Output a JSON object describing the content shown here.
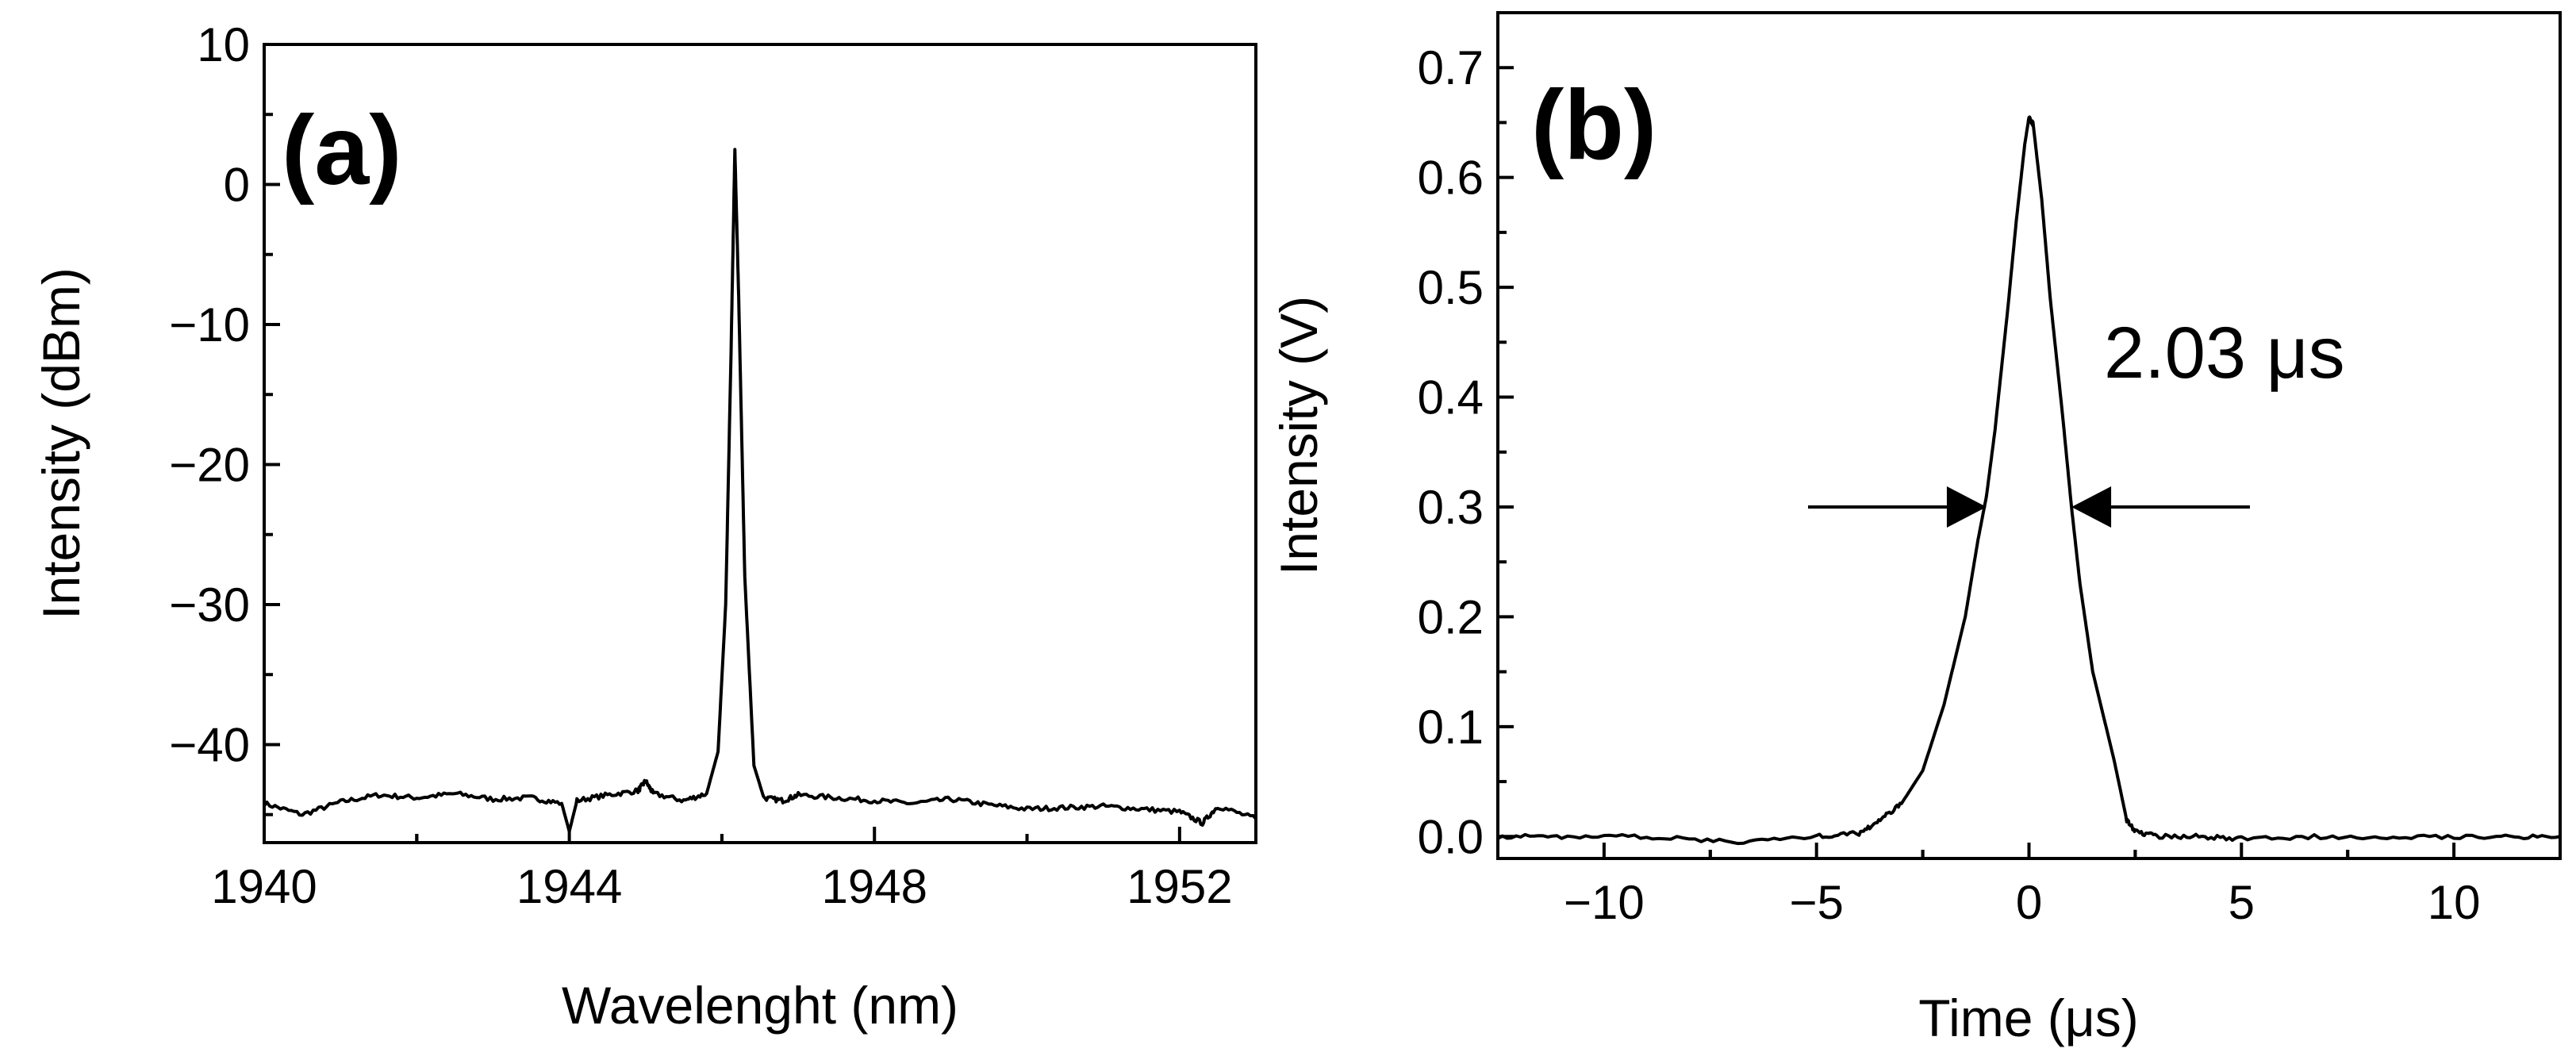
{
  "chart_data": [
    {
      "type": "line",
      "panel_label": "(a)",
      "xlabel": "Wavelenght (nm)",
      "ylabel": "Intensity (dBm)",
      "xlim": [
        1940,
        1953
      ],
      "ylim": [
        -47,
        10
      ],
      "xticks": [
        1940,
        1944,
        1948,
        1952
      ],
      "xtick_labels": [
        "1940",
        "1944",
        "1948",
        "1952"
      ],
      "yticks": [
        10,
        0,
        -10,
        -20,
        -30,
        -40
      ],
      "ytick_labels": [
        "10",
        "0",
        "−10",
        "−20",
        "−30",
        "−40"
      ],
      "grid": false,
      "x": [
        1940.0,
        1940.5,
        1941.0,
        1941.5,
        1942.0,
        1942.5,
        1943.0,
        1943.5,
        1943.9,
        1944.0,
        1944.1,
        1944.5,
        1944.9,
        1945.0,
        1945.1,
        1945.5,
        1945.8,
        1945.95,
        1946.05,
        1946.12,
        1946.17,
        1946.22,
        1946.3,
        1946.42,
        1946.55,
        1946.8,
        1947.0,
        1947.5,
        1948.0,
        1948.5,
        1949.0,
        1949.5,
        1950.0,
        1950.5,
        1951.0,
        1951.5,
        1952.0,
        1952.3,
        1952.5,
        1953.0
      ],
      "y": [
        -44.2,
        -45.0,
        -44.1,
        -43.6,
        -43.8,
        -43.5,
        -43.9,
        -43.8,
        -44.2,
        -46.2,
        -44.0,
        -43.6,
        -43.3,
        -42.6,
        -43.5,
        -44.0,
        -43.5,
        -40.5,
        -30.0,
        -12.0,
        2.5,
        -8.0,
        -28.0,
        -41.5,
        -43.8,
        -44.0,
        -43.6,
        -43.8,
        -44.0,
        -44.2,
        -43.9,
        -44.3,
        -44.6,
        -44.5,
        -44.4,
        -44.6,
        -44.8,
        -45.6,
        -44.4,
        -45.3
      ]
    },
    {
      "type": "line",
      "panel_label": "(b)",
      "xlabel": "Time (μs)",
      "ylabel": "Intensity (V)",
      "xlim": [
        -12.5,
        12.5
      ],
      "ylim": [
        -0.02,
        0.75
      ],
      "xticks": [
        -10,
        -5,
        0,
        5,
        10
      ],
      "xtick_labels": [
        "−10",
        "−5",
        "0",
        "5",
        "10"
      ],
      "yticks": [
        0.0,
        0.1,
        0.2,
        0.3,
        0.4,
        0.5,
        0.6,
        0.7
      ],
      "ytick_labels": [
        "0.0",
        "0.1",
        "0.2",
        "0.3",
        "0.4",
        "0.5",
        "0.6",
        "0.7"
      ],
      "grid": false,
      "x": [
        -12.5,
        -11.0,
        -9.0,
        -7.0,
        -5.0,
        -4.0,
        -3.5,
        -3.0,
        -2.5,
        -2.0,
        -1.5,
        -1.2,
        -1.0,
        -0.8,
        -0.5,
        -0.3,
        -0.1,
        0.0,
        0.1,
        0.3,
        0.5,
        0.8,
        1.0,
        1.2,
        1.5,
        2.0,
        2.3,
        2.5,
        3.0,
        4.0,
        5.0,
        7.0,
        9.0,
        11.0,
        12.5
      ],
      "y": [
        0.0,
        0.0,
        0.0,
        -0.005,
        0.0,
        0.003,
        0.015,
        0.03,
        0.06,
        0.12,
        0.2,
        0.27,
        0.31,
        0.37,
        0.48,
        0.56,
        0.63,
        0.655,
        0.648,
        0.58,
        0.49,
        0.38,
        0.3,
        0.23,
        0.15,
        0.07,
        0.015,
        0.005,
        0.0,
        0.0,
        -0.002,
        0.0,
        0.0,
        0.0,
        0.0
      ],
      "annotation": {
        "text": "2.03 μs",
        "fwhm_level": 0.3,
        "arrow_left_tail_x": -5.2,
        "arrow_left_head_x": -1.0,
        "arrow_right_head_x": 1.0,
        "arrow_right_tail_x": 5.2
      }
    }
  ]
}
